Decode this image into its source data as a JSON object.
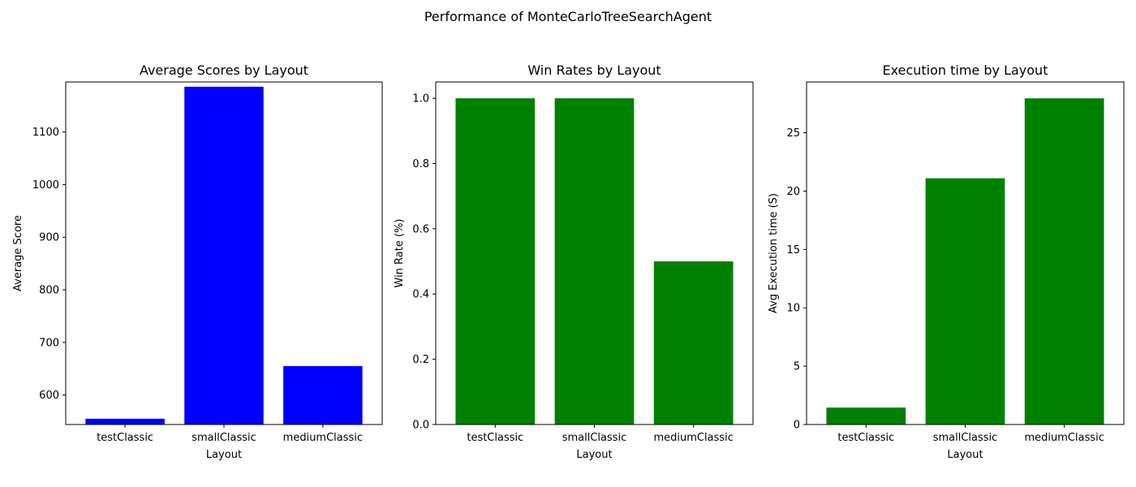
{
  "figure": {
    "title": "Performance of MonteCarloTreeSearchAgent"
  },
  "chart_data": [
    {
      "type": "bar",
      "title": "Average Scores by Layout",
      "xlabel": "Layout",
      "ylabel": "Average Score",
      "categories": [
        "testClassic",
        "smallClassic",
        "mediumClassic"
      ],
      "values": [
        555,
        1186,
        655
      ],
      "color": "#0000ff",
      "ylim": [
        544,
        1195
      ],
      "yticks": [
        600,
        700,
        800,
        900,
        1000,
        1100
      ],
      "ytick_labels": [
        "600",
        "700",
        "800",
        "900",
        "1000",
        "1100"
      ]
    },
    {
      "type": "bar",
      "title": "Win Rates by Layout",
      "xlabel": "Layout",
      "ylabel": "Win Rate (%)",
      "categories": [
        "testClassic",
        "smallClassic",
        "mediumClassic"
      ],
      "values": [
        1.0,
        1.0,
        0.5
      ],
      "color": "#008000",
      "ylim": [
        0,
        1.05
      ],
      "yticks": [
        0,
        0.2,
        0.4,
        0.6,
        0.8,
        1.0
      ],
      "ytick_labels": [
        "0.0",
        "0.2",
        "0.4",
        "0.6",
        "0.8",
        "1.0"
      ]
    },
    {
      "type": "bar",
      "title": "Execution time by Layout",
      "xlabel": "Layout",
      "ylabel": "Avg Execution time (S)",
      "categories": [
        "testClassic",
        "smallClassic",
        "mediumClassic"
      ],
      "values": [
        1.45,
        21.1,
        27.95
      ],
      "color": "#008000",
      "ylim": [
        0,
        29.35
      ],
      "yticks": [
        0,
        5,
        10,
        15,
        20,
        25
      ],
      "ytick_labels": [
        "0",
        "5",
        "10",
        "15",
        "20",
        "25"
      ]
    }
  ]
}
